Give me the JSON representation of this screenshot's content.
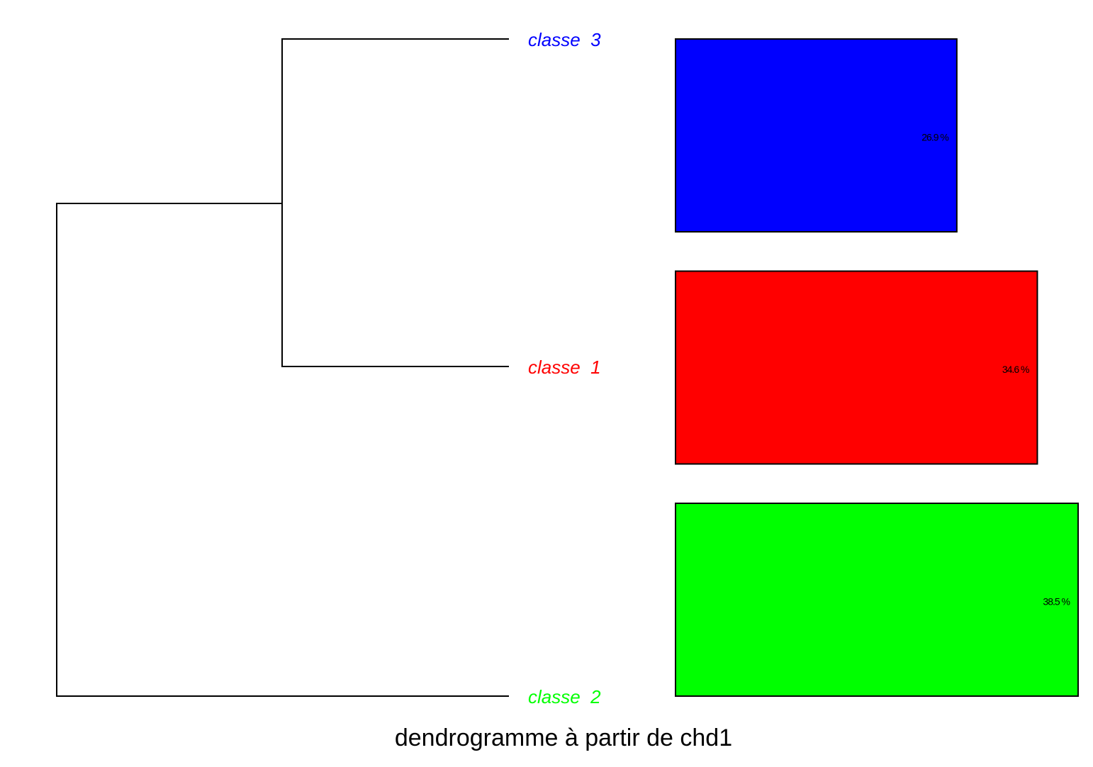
{
  "chart_data": {
    "type": "bar",
    "orientation": "horizontal",
    "title": "dendrogramme à partir de chd1",
    "categories": [
      "classe  3",
      "classe  1",
      "classe  2"
    ],
    "values": [
      26.9,
      34.6,
      38.5
    ],
    "value_labels": [
      "26.9 %",
      "34.6 %",
      "38.5 %"
    ],
    "colors": [
      "#0000ff",
      "#ff0000",
      "#00ff00"
    ]
  }
}
